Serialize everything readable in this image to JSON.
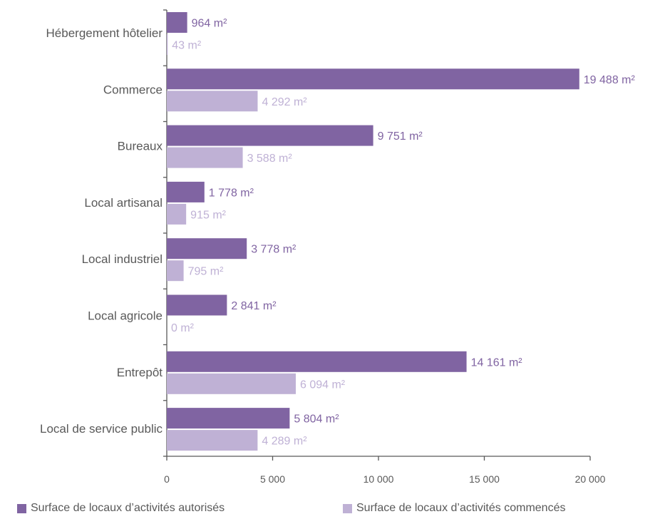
{
  "chart_data": {
    "type": "bar",
    "orientation": "horizontal",
    "categories": [
      "Hébergement hôtelier",
      "Commerce",
      "Bureaux",
      "Local artisanal",
      "Local industriel",
      "Local agricole",
      "Entrepôt",
      "Local de service public"
    ],
    "series": [
      {
        "name": "Surface de locaux d’activités autorisés",
        "values": [
          964,
          19488,
          9751,
          1778,
          3778,
          2841,
          14161,
          5804
        ],
        "labels": [
          "964 m²",
          "19 488 m²",
          "9 751 m²",
          "1 778 m²",
          "3 778 m²",
          "2 841 m²",
          "14 161 m²",
          "5 804 m²"
        ],
        "color": "#8064a2"
      },
      {
        "name": "Surface de locaux d’activités commencés",
        "values": [
          43,
          4292,
          3588,
          915,
          795,
          0,
          6094,
          4289
        ],
        "labels": [
          "43 m²",
          "4 292 m²",
          "3 588 m²",
          "915 m²",
          "795 m²",
          "0 m²",
          "6 094 m²",
          "4 289 m²"
        ],
        "color": "#bfb1d5"
      }
    ],
    "xlim": [
      0,
      20000
    ],
    "xticks": [
      0,
      5000,
      10000,
      15000,
      20000
    ],
    "xtick_labels": [
      "0",
      "5 000",
      "10 000",
      "15 000",
      "20 000"
    ],
    "legend_position": "bottom",
    "grid": false
  }
}
